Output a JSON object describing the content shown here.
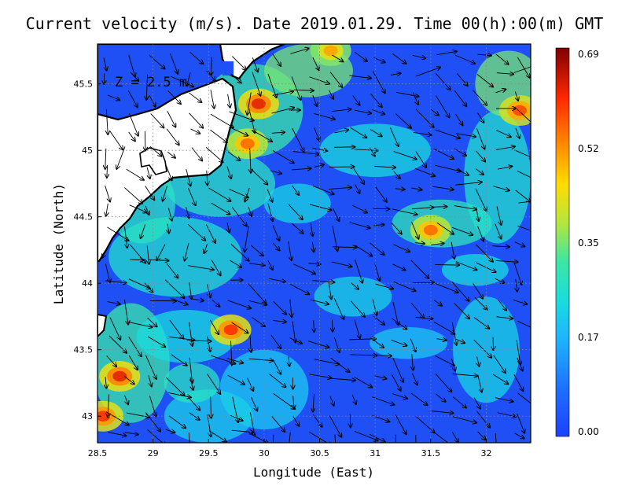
{
  "title": "Current velocity (m/s). Date 2019.01.29. Time 00(h):00(m) GMT",
  "depth_label": "Z = 2.5 m",
  "chart_data": {
    "type": "heatmap",
    "xlabel": "Longitude (East)",
    "ylabel": "Latitude (North)",
    "xlim": [
      28.5,
      32.4
    ],
    "ylim": [
      42.8,
      45.8
    ],
    "x_ticks": [
      "28.5",
      "29",
      "29.5",
      "30",
      "30.5",
      "31",
      "31.5",
      "32"
    ],
    "y_ticks": [
      "43",
      "43.5",
      "44",
      "44.5",
      "45",
      "45.5"
    ],
    "grid": true,
    "colorbar": {
      "min": 0.0,
      "max": 0.69,
      "tick_labels": [
        "0.69",
        "0.52",
        "0.35",
        "0.17",
        "0.00"
      ],
      "colors": [
        "#1e40ff",
        "#1e90ff",
        "#19d2e6",
        "#40e6a0",
        "#c8e632",
        "#ffd700",
        "#ff8c00",
        "#ff2a00",
        "#b40000",
        "#7f0000"
      ]
    },
    "speed_hotspots": [
      {
        "lon": 29.95,
        "lat": 45.35,
        "speed": 0.62
      },
      {
        "lon": 29.85,
        "lat": 45.05,
        "speed": 0.55
      },
      {
        "lon": 28.7,
        "lat": 43.3,
        "speed": 0.62
      },
      {
        "lon": 28.55,
        "lat": 43.0,
        "speed": 0.6
      },
      {
        "lon": 29.7,
        "lat": 43.65,
        "speed": 0.6
      },
      {
        "lon": 31.5,
        "lat": 44.4,
        "speed": 0.55
      },
      {
        "lon": 32.3,
        "lat": 45.3,
        "speed": 0.58
      },
      {
        "lon": 30.6,
        "lat": 45.75,
        "speed": 0.5
      }
    ]
  }
}
